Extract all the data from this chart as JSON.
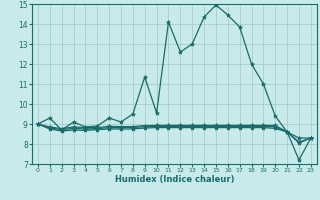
{
  "title": "",
  "xlabel": "Humidex (Indice chaleur)",
  "ylabel": "",
  "background_color": "#c8eaea",
  "grid_color": "#a8cccc",
  "line_color": "#1a6b6b",
  "xlim": [
    -0.5,
    23.5
  ],
  "ylim": [
    7,
    15
  ],
  "yticks": [
    7,
    8,
    9,
    10,
    11,
    12,
    13,
    14,
    15
  ],
  "xticks": [
    0,
    1,
    2,
    3,
    4,
    5,
    6,
    7,
    8,
    9,
    10,
    11,
    12,
    13,
    14,
    15,
    16,
    17,
    18,
    19,
    20,
    21,
    22,
    23
  ],
  "series": [
    {
      "x": [
        0,
        1,
        2,
        3,
        4,
        5,
        6,
        7,
        8,
        9,
        10,
        11,
        12,
        13,
        14,
        15,
        16,
        17,
        18,
        19,
        20,
        21,
        22,
        23
      ],
      "y": [
        9.0,
        9.3,
        8.7,
        9.1,
        8.85,
        8.9,
        9.3,
        9.1,
        9.5,
        11.35,
        9.55,
        14.1,
        12.6,
        13.0,
        14.35,
        14.95,
        14.45,
        13.85,
        12.0,
        11.0,
        9.4,
        8.6,
        8.05,
        8.3
      ]
    },
    {
      "x": [
        0,
        1,
        2,
        3,
        4,
        5,
        6,
        7,
        8,
        9,
        10,
        11,
        12,
        13,
        14,
        15,
        16,
        17,
        18,
        19,
        20,
        21,
        22,
        23
      ],
      "y": [
        9.0,
        8.75,
        8.65,
        8.7,
        8.68,
        8.72,
        8.75,
        8.75,
        8.75,
        8.8,
        8.82,
        8.82,
        8.82,
        8.82,
        8.82,
        8.82,
        8.82,
        8.82,
        8.82,
        8.82,
        8.78,
        8.6,
        8.3,
        8.3
      ]
    },
    {
      "x": [
        0,
        1,
        2,
        3,
        4,
        5,
        6,
        7,
        8,
        9,
        10,
        11,
        12,
        13,
        14,
        15,
        16,
        17,
        18,
        19,
        20,
        21,
        22,
        23
      ],
      "y": [
        9.0,
        8.85,
        8.77,
        8.85,
        8.82,
        8.82,
        8.88,
        8.87,
        8.87,
        8.92,
        8.93,
        8.93,
        8.93,
        8.93,
        8.93,
        8.93,
        8.93,
        8.93,
        8.93,
        8.93,
        8.93,
        8.6,
        7.2,
        8.3
      ]
    },
    {
      "x": [
        0,
        1,
        2,
        3,
        4,
        5,
        6,
        7,
        8,
        9,
        10,
        11,
        12,
        13,
        14,
        15,
        16,
        17,
        18,
        19,
        20,
        21,
        22,
        23
      ],
      "y": [
        9.0,
        8.8,
        8.72,
        8.78,
        8.75,
        8.77,
        8.82,
        8.82,
        8.82,
        8.87,
        8.88,
        8.88,
        8.88,
        8.88,
        8.88,
        8.88,
        8.88,
        8.88,
        8.88,
        8.88,
        8.86,
        8.6,
        8.1,
        8.3
      ]
    }
  ]
}
